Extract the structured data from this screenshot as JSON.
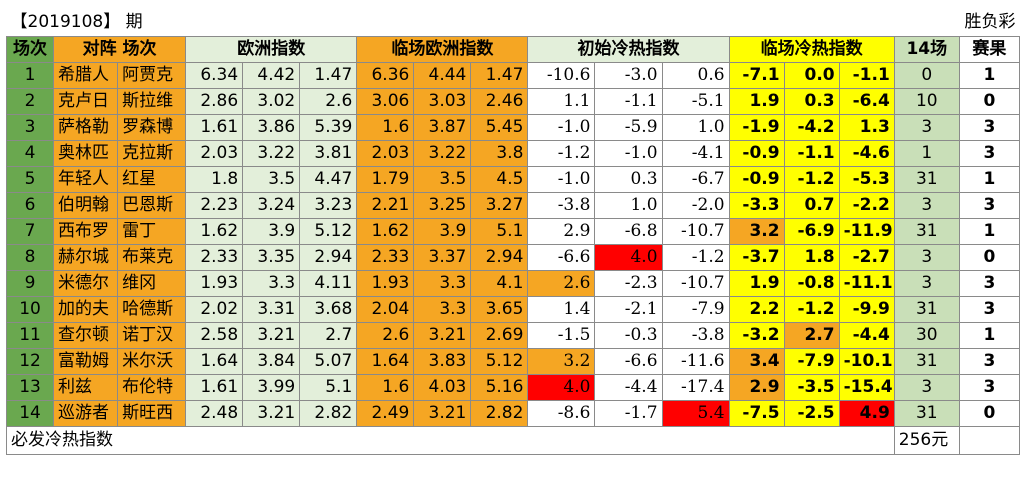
{
  "header": {
    "period": "【2019108】 期",
    "lottery_type": "胜负彩"
  },
  "columns": {
    "index": "场次",
    "match": "对阵 场次",
    "euro": "欧洲指数",
    "live_euro": "临场欧洲指数",
    "init_cold": "初始冷热指数",
    "live_cold": "临场冷热指数",
    "col14": "14场",
    "result": "赛果"
  },
  "rows": [
    {
      "no": "1",
      "home": "希腊人",
      "away": "阿贾克",
      "euro": [
        "6.34",
        "4.42",
        "1.47"
      ],
      "live": [
        "6.36",
        "4.44",
        "1.47"
      ],
      "init": [
        "-10.6",
        "-3.0",
        "0.6"
      ],
      "hot": [
        "-7.1",
        "0.0",
        "-1.1"
      ],
      "c14": "0",
      "res": "1"
    },
    {
      "no": "2",
      "home": "克卢日",
      "away": "斯拉维",
      "euro": [
        "2.86",
        "3.02",
        "2.6"
      ],
      "live": [
        "3.06",
        "3.03",
        "2.46"
      ],
      "init": [
        "1.1",
        "-1.1",
        "-5.1"
      ],
      "hot": [
        "1.9",
        "0.3",
        "-6.4"
      ],
      "c14": "10",
      "res": "0"
    },
    {
      "no": "3",
      "home": "萨格勒",
      "away": "罗森博",
      "euro": [
        "1.61",
        "3.86",
        "5.39"
      ],
      "live": [
        "1.6",
        "3.87",
        "5.45"
      ],
      "init": [
        "-1.0",
        "-5.9",
        "1.0"
      ],
      "hot": [
        "-1.9",
        "-4.2",
        "1.3"
      ],
      "c14": "3",
      "res": "3"
    },
    {
      "no": "4",
      "home": "奥林匹",
      "away": "克拉斯",
      "euro": [
        "2.03",
        "3.22",
        "3.81"
      ],
      "live": [
        "2.03",
        "3.22",
        "3.8"
      ],
      "init": [
        "-1.2",
        "-1.0",
        "-4.1"
      ],
      "hot": [
        "-0.9",
        "-1.1",
        "-4.6"
      ],
      "c14": "1",
      "res": "3"
    },
    {
      "no": "5",
      "home": "年轻人",
      "away": "红星",
      "euro": [
        "1.8",
        "3.5",
        "4.47"
      ],
      "live": [
        "1.79",
        "3.5",
        "4.5"
      ],
      "init": [
        "-1.0",
        "0.3",
        "-6.7"
      ],
      "hot": [
        "-0.9",
        "-1.2",
        "-5.3"
      ],
      "c14": "31",
      "res": "1"
    },
    {
      "no": "6",
      "home": "伯明翰",
      "away": "巴恩斯",
      "euro": [
        "2.23",
        "3.24",
        "3.23"
      ],
      "live": [
        "2.21",
        "3.25",
        "3.27"
      ],
      "init": [
        "-3.8",
        "1.0",
        "-2.0"
      ],
      "hot": [
        "-3.3",
        "0.7",
        "-2.2"
      ],
      "c14": "3",
      "res": "3"
    },
    {
      "no": "7",
      "home": "西布罗",
      "away": "雷丁",
      "euro": [
        "1.62",
        "3.9",
        "5.12"
      ],
      "live": [
        "1.62",
        "3.9",
        "5.1"
      ],
      "init": [
        "2.9",
        "-6.8",
        "-10.7"
      ],
      "hot": [
        "3.2",
        "-6.9",
        "-11.9"
      ],
      "c14": "31",
      "res": "1"
    },
    {
      "no": "8",
      "home": "赫尔城",
      "away": "布莱克",
      "euro": [
        "2.33",
        "3.35",
        "2.94"
      ],
      "live": [
        "2.33",
        "3.37",
        "2.94"
      ],
      "init": [
        "-6.6",
        "4.0",
        "-1.2"
      ],
      "hot": [
        "-3.7",
        "1.8",
        "-2.7"
      ],
      "c14": "3",
      "res": "0"
    },
    {
      "no": "9",
      "home": "米德尔",
      "away": "维冈",
      "euro": [
        "1.93",
        "3.3",
        "4.11"
      ],
      "live": [
        "1.93",
        "3.3",
        "4.1"
      ],
      "init": [
        "2.6",
        "-2.3",
        "-10.7"
      ],
      "hot": [
        "1.9",
        "-0.8",
        "-11.1"
      ],
      "c14": "3",
      "res": "3"
    },
    {
      "no": "10",
      "home": "加的夫",
      "away": "哈德斯",
      "euro": [
        "2.02",
        "3.31",
        "3.68"
      ],
      "live": [
        "2.04",
        "3.3",
        "3.65"
      ],
      "init": [
        "1.4",
        "-2.1",
        "-7.9"
      ],
      "hot": [
        "2.2",
        "-1.2",
        "-9.9"
      ],
      "c14": "31",
      "res": "3"
    },
    {
      "no": "11",
      "home": "查尔顿",
      "away": "诺丁汉",
      "euro": [
        "2.58",
        "3.21",
        "2.7"
      ],
      "live": [
        "2.6",
        "3.21",
        "2.69"
      ],
      "init": [
        "-1.5",
        "-0.3",
        "-3.8"
      ],
      "hot": [
        "-3.2",
        "2.7",
        "-4.4"
      ],
      "c14": "30",
      "res": "1"
    },
    {
      "no": "12",
      "home": "富勒姆",
      "away": "米尔沃",
      "euro": [
        "1.64",
        "3.84",
        "5.07"
      ],
      "live": [
        "1.64",
        "3.83",
        "5.12"
      ],
      "init": [
        "3.2",
        "-6.6",
        "-11.6"
      ],
      "hot": [
        "3.4",
        "-7.9",
        "-10.1"
      ],
      "c14": "31",
      "res": "3"
    },
    {
      "no": "13",
      "home": "利兹",
      "away": "布伦特",
      "euro": [
        "1.61",
        "3.99",
        "5.1"
      ],
      "live": [
        "1.6",
        "4.03",
        "5.16"
      ],
      "init": [
        "4.0",
        "-4.4",
        "-17.4"
      ],
      "hot": [
        "2.9",
        "-3.5",
        "-15.4"
      ],
      "c14": "3",
      "res": "3"
    },
    {
      "no": "14",
      "home": "巡游者",
      "away": "斯旺西",
      "euro": [
        "2.48",
        "3.21",
        "2.82"
      ],
      "live": [
        "2.49",
        "3.21",
        "2.82"
      ],
      "init": [
        "-8.6",
        "-1.7",
        "5.4"
      ],
      "hot": [
        "-7.5",
        "-2.5",
        "4.9"
      ],
      "c14": "31",
      "res": "0"
    }
  ],
  "highlights": {
    "init": [
      {
        "row": 7,
        "col": 1,
        "color": "red"
      },
      {
        "row": 8,
        "col": 0,
        "color": "orange"
      },
      {
        "row": 11,
        "col": 0,
        "color": "orange"
      },
      {
        "row": 12,
        "col": 0,
        "color": "red"
      },
      {
        "row": 13,
        "col": 2,
        "color": "red"
      }
    ],
    "hot": [
      {
        "row": 6,
        "col": 0,
        "color": "orange"
      },
      {
        "row": 10,
        "col": 1,
        "color": "orange"
      },
      {
        "row": 11,
        "col": 0,
        "color": "orange"
      },
      {
        "row": 12,
        "col": 0,
        "color": "orange"
      },
      {
        "row": 13,
        "col": 2,
        "color": "red"
      }
    ]
  },
  "footer": {
    "label": "必发冷热指数",
    "price": "256元"
  },
  "colors": {
    "index_green": "#6aa84f",
    "team_orange": "#f5a623",
    "euro_pale_green": "#e3efda",
    "hot_yellow": "#ffff00",
    "col14_green": "#c9dfb8",
    "highlight_red": "#ff0000",
    "highlight_orange": "#f5a623"
  }
}
